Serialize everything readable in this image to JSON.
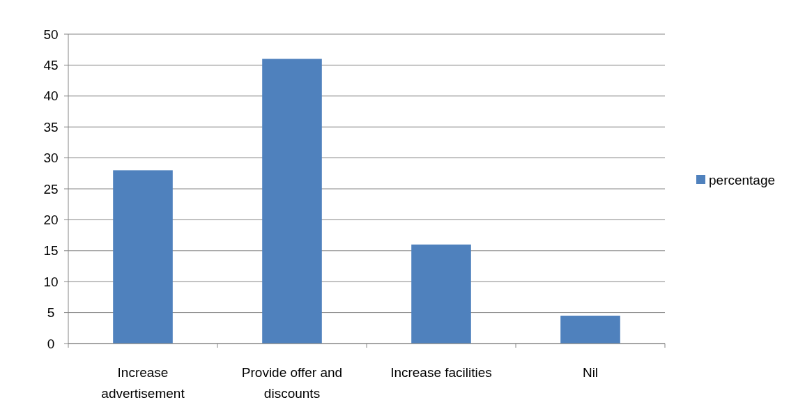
{
  "chart_data": {
    "type": "bar",
    "categories": [
      "Increase advertisement",
      "Provide offer and discounts",
      "Increase facilities",
      "Nil"
    ],
    "series": [
      {
        "name": "percentage",
        "color": "#4f81bd",
        "values": [
          28,
          46,
          16,
          4.5
        ]
      }
    ],
    "ylim": [
      0,
      50
    ],
    "yticks": [
      0,
      5,
      10,
      15,
      20,
      25,
      30,
      35,
      40,
      45,
      50
    ],
    "grid": "y",
    "legend": "right"
  }
}
